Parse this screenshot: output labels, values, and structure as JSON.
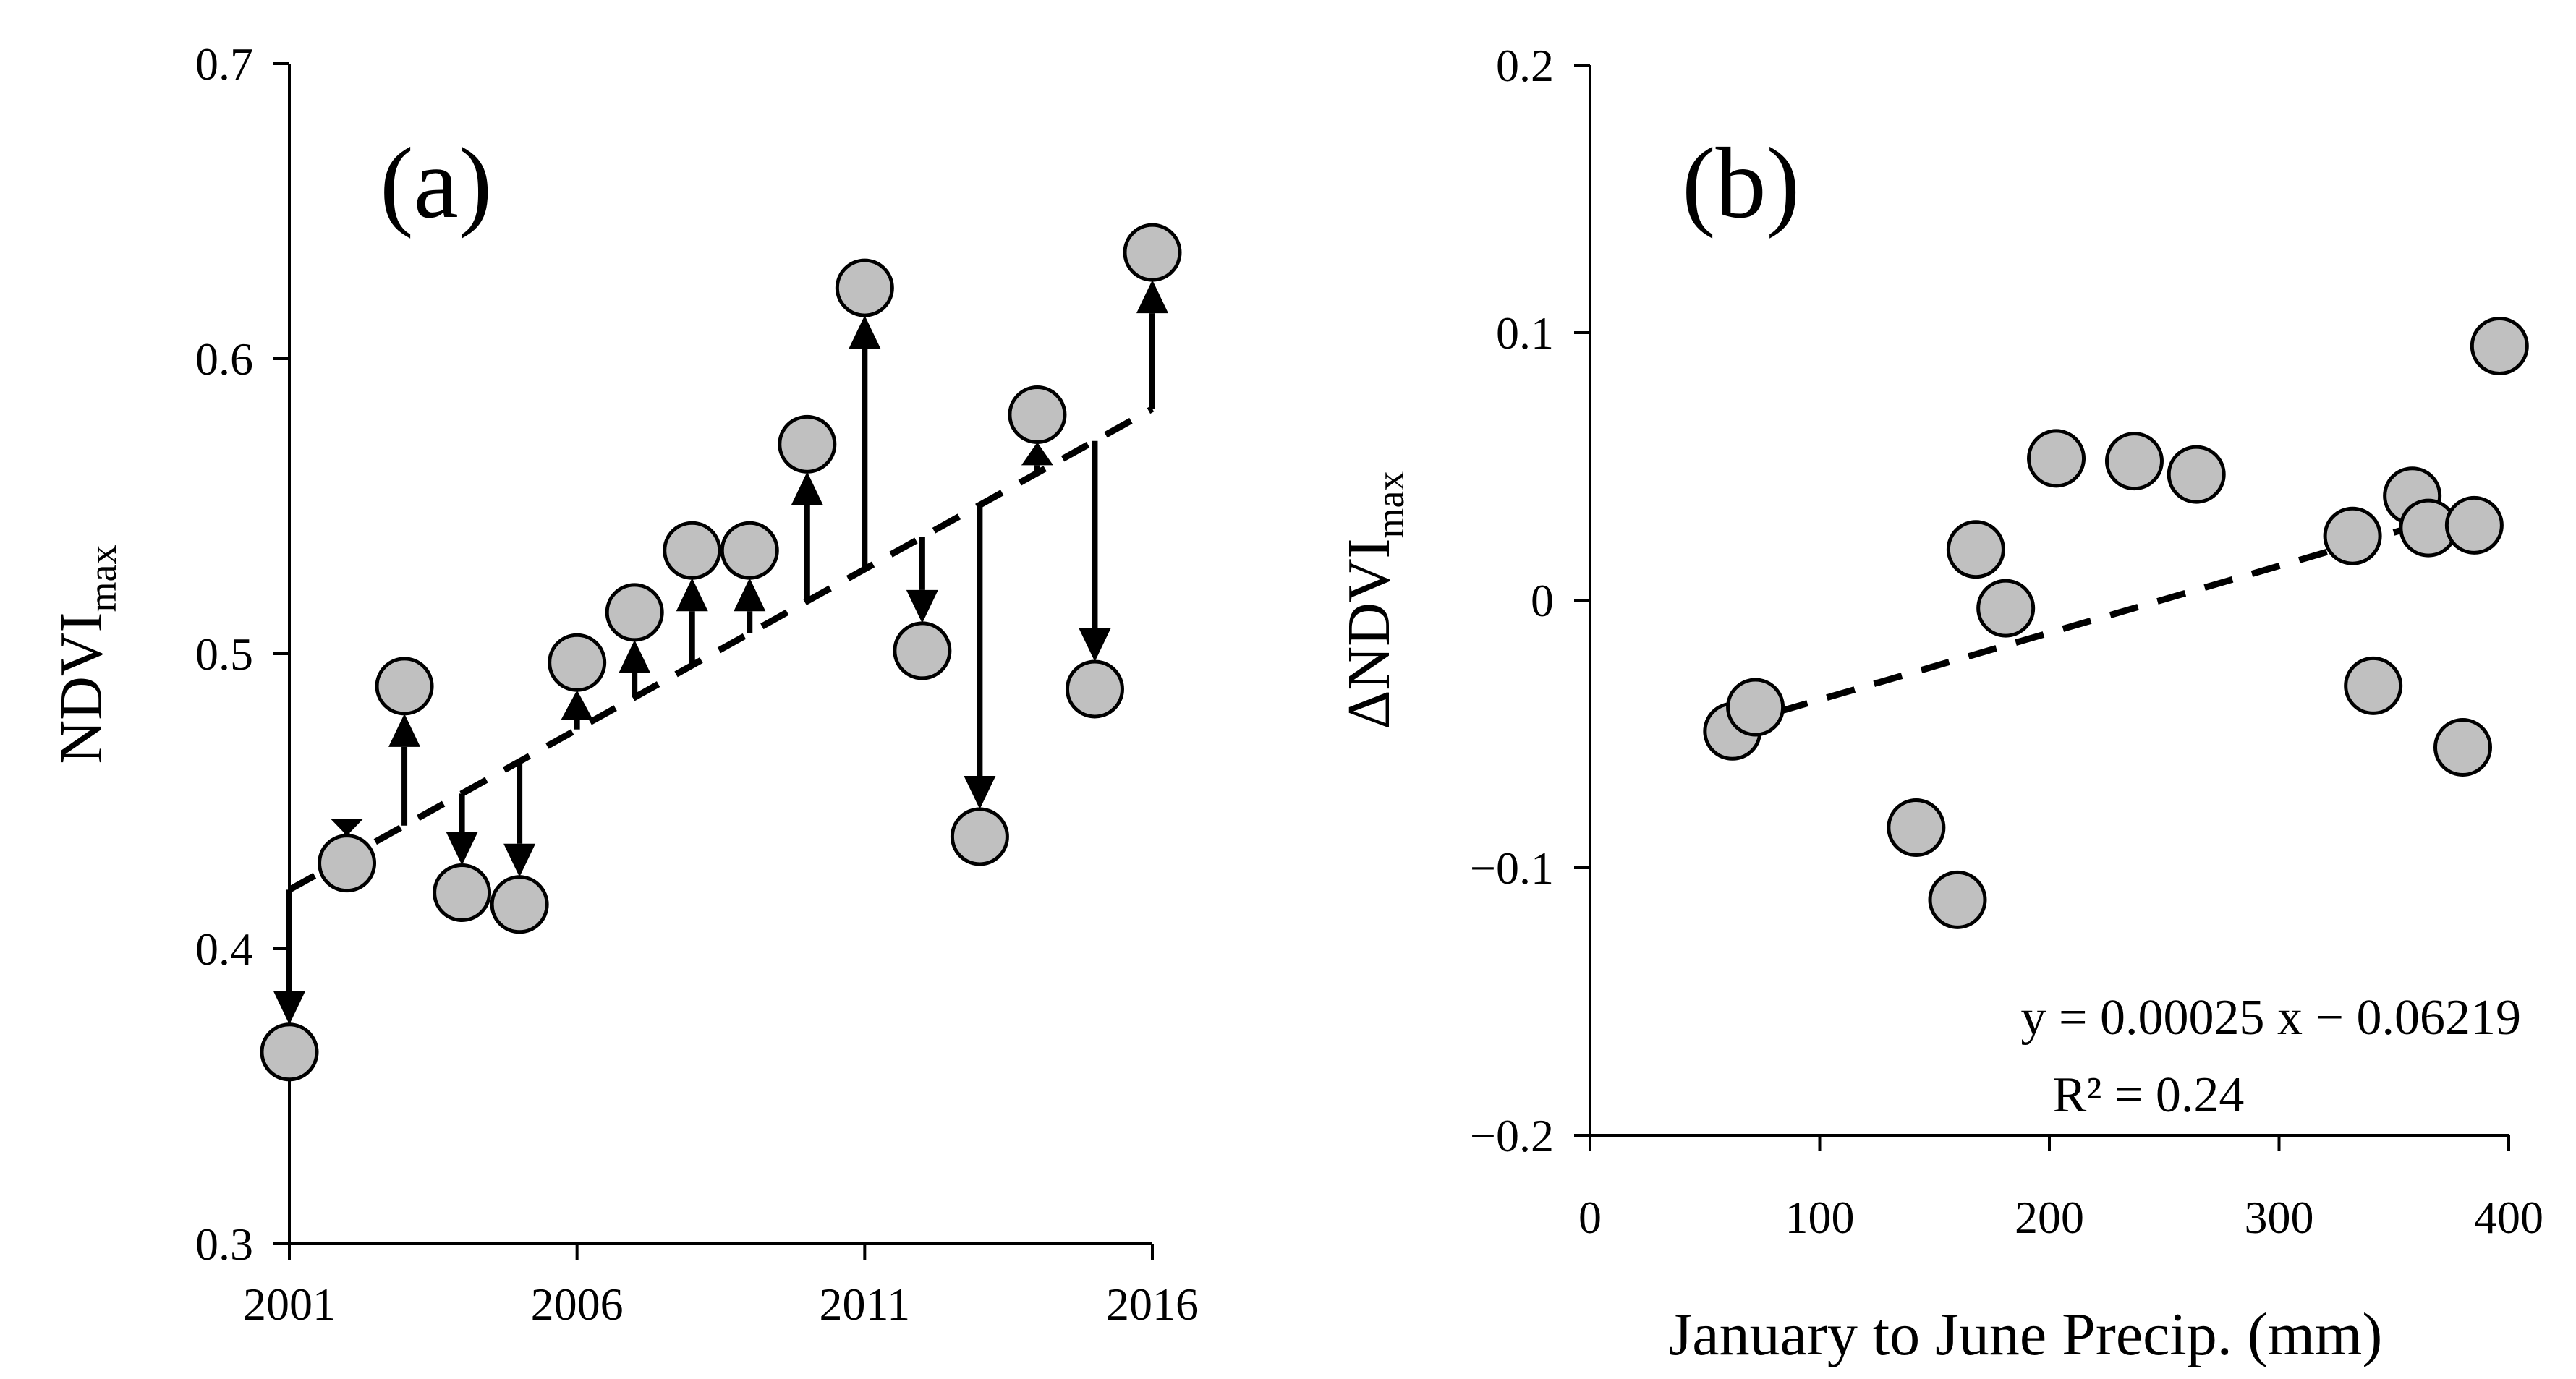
{
  "chart_data": [
    {
      "type": "scatter",
      "panel_label": "(a)",
      "xlabel": "",
      "ylabel": "NDVI",
      "ylabel_sub": "max",
      "xlim": [
        2001,
        2016
      ],
      "ylim": [
        0.3,
        0.7
      ],
      "xticks": [
        "2001",
        "2006",
        "2011",
        "2016"
      ],
      "yticks": [
        "0.3",
        "0.4",
        "0.5",
        "0.6",
        "0.7"
      ],
      "grid": false,
      "series": [
        {
          "name": "NDVImax",
          "x": [
            2001,
            2002,
            2003,
            2004,
            2005,
            2006,
            2007,
            2008,
            2009,
            2010,
            2011,
            2012,
            2013,
            2014,
            2015,
            2016
          ],
          "y": [
            0.365,
            0.429,
            0.489,
            0.419,
            0.415,
            0.497,
            0.514,
            0.535,
            0.535,
            0.571,
            0.624,
            0.501,
            0.438,
            0.581,
            0.488,
            0.636
          ]
        }
      ],
      "trend": {
        "style": "dashed",
        "start": [
          2001,
          0.42
        ],
        "end": [
          2016,
          0.583
        ]
      },
      "arrows": "vertical arrows from trend line to each observed value"
    },
    {
      "type": "scatter",
      "panel_label": "(b)",
      "xlabel": "January to June Precip. (mm)",
      "ylabel": "ΔNDVI",
      "ylabel_sub": "max",
      "xlim": [
        0,
        400
      ],
      "ylim": [
        -0.2,
        0.2
      ],
      "xticks": [
        "0",
        "100",
        "200",
        "300",
        "400"
      ],
      "yticks": [
        "−0.2",
        "−0.1",
        "0",
        "0.1",
        "0.2"
      ],
      "grid": false,
      "series": [
        {
          "name": "ΔNDVImax",
          "x": [
            62,
            72,
            142,
            160,
            168,
            181,
            203,
            237,
            264,
            332,
            341,
            358,
            365,
            380,
            385,
            396
          ],
          "y": [
            -0.049,
            -0.04,
            -0.085,
            -0.112,
            0.019,
            -0.003,
            0.053,
            0.052,
            0.047,
            0.024,
            -0.032,
            0.039,
            0.027,
            -0.055,
            0.028,
            0.095
          ]
        }
      ],
      "fit": {
        "style": "dashed",
        "slope": 0.00025,
        "intercept": -0.06219,
        "x_range": [
          62,
          390
        ],
        "equation_text": "y = 0.00025 x − 0.06219",
        "r2_text": "R² = 0.24"
      }
    }
  ]
}
